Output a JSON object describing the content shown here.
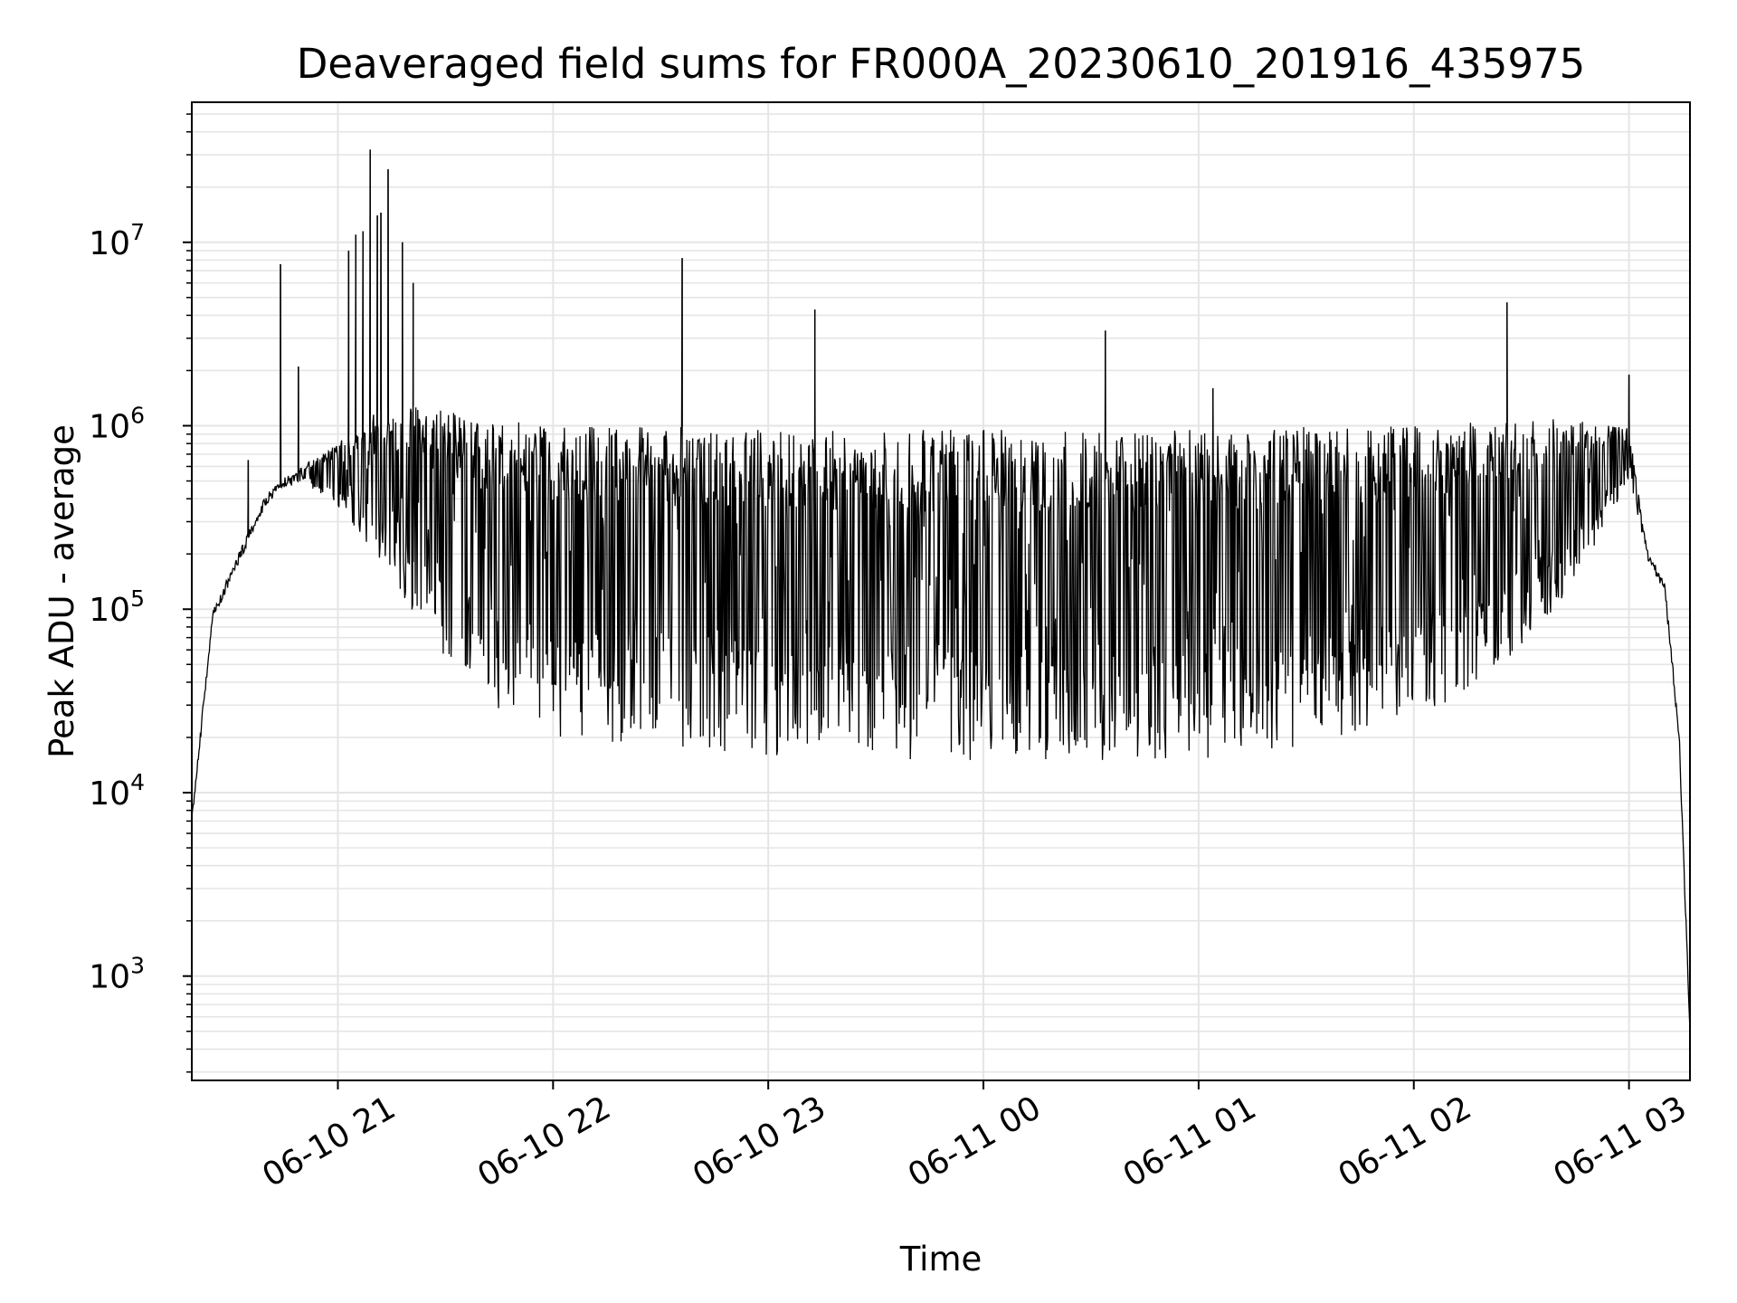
{
  "chart_data": {
    "type": "line",
    "title": "Deaveraged field sums for FR000A_20230610_201916_435975",
    "xlabel": "Time",
    "ylabel": "Peak ADU - average",
    "yscale": "log",
    "grid": true,
    "grid_minor": true,
    "line_color": "#000000",
    "grid_color": "#e5e5e5",
    "xlim": [
      "2023-06-10 20:19:16",
      "2023-06-11 03:17:00"
    ],
    "ylim": [
      270,
      58000000
    ],
    "x_ticks": [
      {
        "value": "2023-06-10 21:00",
        "label": "06-10 21"
      },
      {
        "value": "2023-06-10 22:00",
        "label": "06-10 22"
      },
      {
        "value": "2023-06-10 23:00",
        "label": "06-10 23"
      },
      {
        "value": "2023-06-11 00:00",
        "label": "06-11 00"
      },
      {
        "value": "2023-06-11 01:00",
        "label": "06-11 01"
      },
      {
        "value": "2023-06-11 02:00",
        "label": "06-11 02"
      },
      {
        "value": "2023-06-11 03:00",
        "label": "06-11 03"
      }
    ],
    "y_ticks": [
      {
        "value": 1000,
        "base": "10",
        "exp": "3"
      },
      {
        "value": 10000,
        "base": "10",
        "exp": "4"
      },
      {
        "value": 100000,
        "base": "10",
        "exp": "5"
      },
      {
        "value": 1000000,
        "base": "10",
        "exp": "6"
      },
      {
        "value": 10000000,
        "base": "10",
        "exp": "7"
      }
    ],
    "envelope": {
      "x": [
        "2023-06-10 20:19:16",
        "2023-06-10 20:25",
        "2023-06-10 20:30",
        "2023-06-10 20:40",
        "2023-06-10 20:50",
        "2023-06-10 21:00",
        "2023-06-10 21:10",
        "2023-06-10 21:20",
        "2023-06-10 21:30",
        "2023-06-10 21:40",
        "2023-06-10 22:00",
        "2023-06-10 22:30",
        "2023-06-10 23:00",
        "2023-06-10 23:30",
        "2023-06-11 00:00",
        "2023-06-11 00:30",
        "2023-06-11 01:00",
        "2023-06-11 01:30",
        "2023-06-11 02:00",
        "2023-06-11 02:20",
        "2023-06-11 02:40",
        "2023-06-11 02:50",
        "2023-06-11 03:00",
        "2023-06-11 03:05",
        "2023-06-11 03:10",
        "2023-06-11 03:14",
        "2023-06-11 03:17"
      ],
      "high": [
        7000,
        90000,
        150000,
        400000,
        600000,
        800000,
        1200000,
        1300000,
        1200000,
        1100000,
        1000000,
        1000000,
        950000,
        950000,
        950000,
        950000,
        950000,
        1000000,
        1000000,
        1050000,
        1100000,
        1100000,
        1000000,
        200000,
        130000,
        20000,
        500
      ],
      "low": [
        7000,
        90000,
        150000,
        400000,
        500000,
        350000,
        200000,
        90000,
        50000,
        30000,
        20000,
        18000,
        16000,
        15000,
        15000,
        15000,
        15000,
        18000,
        25000,
        40000,
        100000,
        200000,
        500000,
        200000,
        130000,
        20000,
        500
      ]
    },
    "spikes": [
      {
        "x": "2023-06-10 20:35",
        "y": 650000
      },
      {
        "x": "2023-06-10 20:44",
        "y": 7600000
      },
      {
        "x": "2023-06-10 20:49",
        "y": 2100000
      },
      {
        "x": "2023-06-10 21:03",
        "y": 9000000
      },
      {
        "x": "2023-06-10 21:05",
        "y": 11000000
      },
      {
        "x": "2023-06-10 21:07",
        "y": 11500000
      },
      {
        "x": "2023-06-10 21:09",
        "y": 32000000
      },
      {
        "x": "2023-06-10 21:11",
        "y": 14000000
      },
      {
        "x": "2023-06-10 21:12",
        "y": 14500000
      },
      {
        "x": "2023-06-10 21:14",
        "y": 25000000
      },
      {
        "x": "2023-06-10 21:18",
        "y": 10000000
      },
      {
        "x": "2023-06-10 21:21",
        "y": 6000000
      },
      {
        "x": "2023-06-10 22:36",
        "y": 8200000
      },
      {
        "x": "2023-06-10 23:13",
        "y": 4300000
      },
      {
        "x": "2023-06-11 00:34",
        "y": 3300000
      },
      {
        "x": "2023-06-11 01:04",
        "y": 1600000
      },
      {
        "x": "2023-06-11 02:26",
        "y": 4700000
      },
      {
        "x": "2023-06-11 03:00",
        "y": 1900000
      }
    ]
  }
}
